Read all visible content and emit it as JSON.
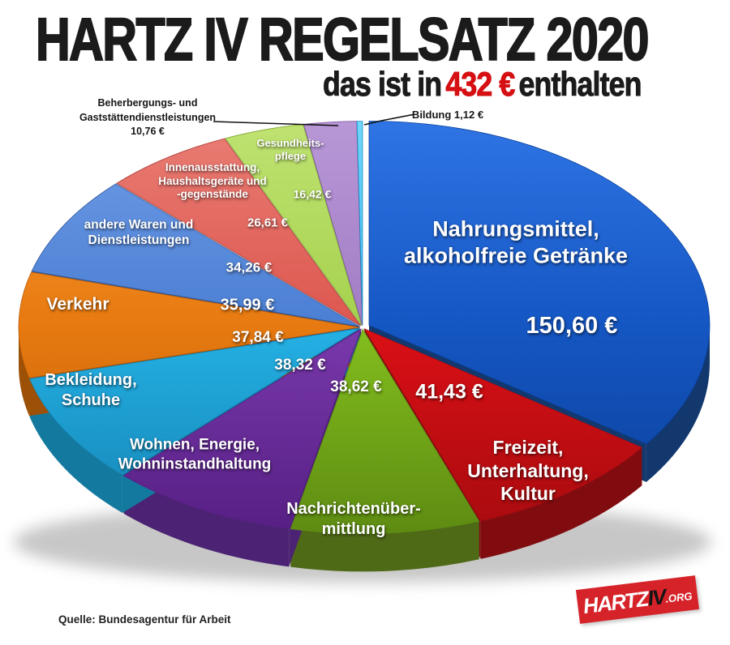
{
  "header": {
    "title": "HARTZ IV REGELSATZ 2020",
    "subtitle_prefix": "das ist in",
    "subtitle_amount": "432 €",
    "subtitle_suffix": "enthalten"
  },
  "footer": {
    "source": "Quelle: Bundesagentur  für Arbeit",
    "logo": {
      "part1": "HARTZ",
      "part2": "IV",
      "part3": ".ORG"
    }
  },
  "colors": {
    "accent_red": "#d50f12",
    "logo_red": "#d6232a",
    "title_black": "#1b1b1b",
    "background": "#ffffff"
  },
  "chart_data": {
    "type": "pie",
    "style": "3d-exploded",
    "title": "HARTZ IV REGELSATZ 2020 – das ist in 432 € enthalten",
    "unit": "€",
    "total": 432,
    "start_angle_deg": -90,
    "clockwise": true,
    "legend_position": "on-slice",
    "slices": [
      {
        "label": "Nahrungsmittel, alkoholfreie Getränke",
        "label_lines": [
          "Nahrungsmittel,",
          "alkoholfreie Getränke"
        ],
        "value": 150.6,
        "value_label": "150,60 €",
        "color": "#1557c4",
        "light": "#2f74e4",
        "dark": "#0b3f98",
        "side": "#12386e",
        "explode": 9
      },
      {
        "label": "Freizeit, Unterhaltung, Kultur",
        "label_lines": [
          "Freizeit,",
          "Unterhaltung,",
          "Kultur"
        ],
        "value": 41.43,
        "value_label": "41,43 €",
        "color": "#dc1016",
        "light": "#f03024",
        "dark": "#a80b0f",
        "side": "#810c10",
        "explode": 4
      },
      {
        "label": "Nachrichtenübermittlung",
        "label_lines": [
          "Nachrichtenüber-",
          "mittlung"
        ],
        "value": 38.62,
        "value_label": "38,62 €",
        "color": "#84c01e",
        "light": "#9cd430",
        "dark": "#5e8c12",
        "side": "#4f6a17",
        "explode": 4
      },
      {
        "label": "Wohnen, Energie, Wohninstandhaltung",
        "label_lines": [
          "Wohnen, Energie,",
          "Wohninstandhaltung"
        ],
        "value": 38.32,
        "value_label": "38,32 €",
        "color": "#7a3aad",
        "light": "#9156c4",
        "dark": "#571f84",
        "side": "#4c2374",
        "explode": 4
      },
      {
        "label": "Bekleidung, Schuhe",
        "label_lines": [
          "Bekleidung,",
          "Schuhe"
        ],
        "value": 37.84,
        "value_label": "37,84 €",
        "color": "#25b2e6",
        "light": "#4fcbf4",
        "dark": "#1484b4",
        "side": "#14799f",
        "explode": 4
      },
      {
        "label": "Verkehr",
        "label_lines": [
          "Verkehr"
        ],
        "value": 35.99,
        "value_label": "35,99 €",
        "color": "#e87b11",
        "light": "#f79c35",
        "dark": "#bc5c07",
        "side": "#9c5106",
        "explode": 4
      },
      {
        "label": "andere Waren und Dienstleistungen",
        "label_lines": [
          "andere Waren und",
          "Dienstleistungen"
        ],
        "value": 34.26,
        "value_label": "34,26 €",
        "color": "#4c80d4",
        "light": "#6f9ce6",
        "dark": "#33599c",
        "side": "#31568e",
        "explode": 4
      },
      {
        "label": "Innenausstattung, Haushaltsgeräte und -gegenstände",
        "label_lines": [
          "Innenausstattung,",
          "Haushaltsgeräte und",
          "-gegenstände"
        ],
        "value": 26.61,
        "value_label": "26,61 €",
        "color": "#dd5850",
        "light": "#e97d74",
        "dark": "#a93630",
        "side": "#8f312c",
        "explode": 4
      },
      {
        "label": "Gesundheitspflege",
        "label_lines": [
          "Gesundheits-",
          "pflege"
        ],
        "value": 16.42,
        "value_label": "16,42 €",
        "color": "#a6d24f",
        "light": "#bfe271",
        "dark": "#7fa534",
        "side": "#6d8c32",
        "explode": 4
      },
      {
        "label": "Beherbergungs- und Gaststättendienstleistungen",
        "label_lines": [
          "Beherbergungs- und",
          "Gaststättendienstleistungen",
          "10,76 €"
        ],
        "value": 10.76,
        "value_label": "10,76 €",
        "color": "#a27dc5",
        "light": "#b897d6",
        "dark": "#7b539e",
        "side": "#6a5187",
        "explode": 4
      },
      {
        "label": "Bildung",
        "label_lines": [
          "Bildung 1,12 €"
        ],
        "value": 1.12,
        "value_label": "1,12 €",
        "color": "#3cbff2",
        "light": "#6fd6fa",
        "dark": "#1e8cc0",
        "side": "#2188b4",
        "explode": 4
      }
    ]
  }
}
